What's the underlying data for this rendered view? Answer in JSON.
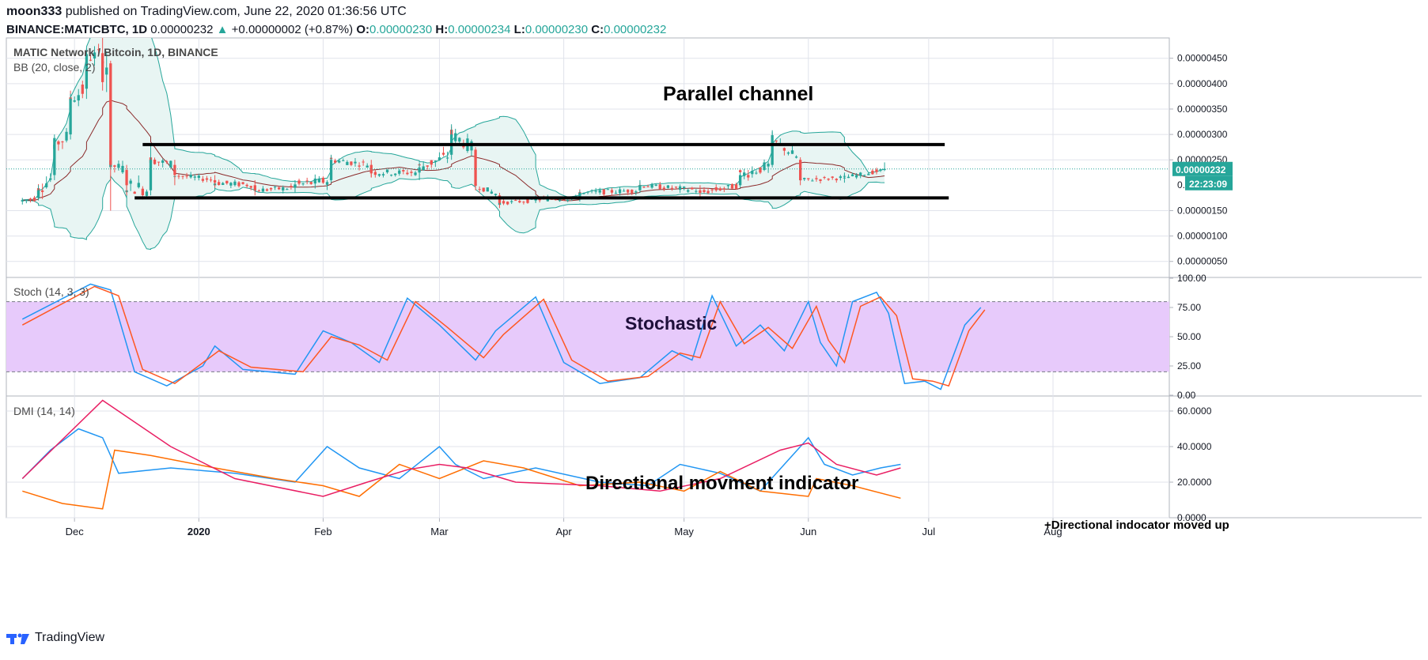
{
  "header": {
    "author": "moon333",
    "published_text": " published on TradingView.com, June 22, 2020 01:36:56 UTC",
    "symbol": "BINANCE:MATICBTC, 1D",
    "last": "0.00000232",
    "change_arrow": "▲",
    "change": "+0.00000002 (+0.87%)",
    "o_label": "O:",
    "o_value": "0.00000230",
    "h_label": "H:",
    "h_value": "0.00000234",
    "l_label": "L:",
    "l_value": "0.00000230",
    "c_label": "C:",
    "c_value": "0.00000232"
  },
  "footer": {
    "brand": "TradingView"
  },
  "colors": {
    "up": "#26a69a",
    "down": "#ef5350",
    "bb_band": "#26a69a",
    "bb_basis": "#8b2b2b",
    "bb_fill": "#e8f5f3",
    "stoch_k": "#2196f3",
    "stoch_d": "#ff5722",
    "stoch_bg": "#e7cafb",
    "dmi_plus": "#2196f3",
    "dmi_minus": "#ff6d00",
    "adx": "#e91e63",
    "grid": "#e0e3eb",
    "last_price": "#26a69a"
  },
  "chart_data": [
    {
      "type": "candlestick",
      "title": "MATIC Network / Bitcoin, 1D, BINANCE",
      "indicator": "BB (20, close, 2)",
      "annotation": "Parallel channel",
      "x_labels": [
        "Dec",
        "2020",
        "Feb",
        "Mar",
        "Apr",
        "May",
        "Jun",
        "Jul",
        "Aug"
      ],
      "y_ticks": [
        "0.00000450",
        "0.00000400",
        "0.00000350",
        "0.00000300",
        "0.00000250",
        "0.00000150",
        "0.00000100",
        "0.00000050"
      ],
      "y_ticks_values": [
        4.5e-06,
        4e-06,
        3.5e-06,
        3e-06,
        2.5e-06,
        1.5e-06,
        1e-06,
        5e-07
      ],
      "ylim": [
        2e-07,
        4.9e-06
      ],
      "last_price_label": "0.00000232",
      "countdown_label": "22:23:09",
      "partial_tick_label": "0.",
      "channel_upper": [
        [
          "2019-12-18",
          2.8e-06
        ],
        [
          "2020-07-05",
          2.8e-06
        ]
      ],
      "channel_lower": [
        [
          "2019-12-16",
          1.75e-06
        ],
        [
          "2020-07-06",
          1.75e-06
        ]
      ],
      "ohlc": [
        [
          "2019-11-18",
          1.68e-06,
          1.75e-06,
          1.62e-06,
          1.7e-06
        ],
        [
          "2019-11-22",
          1.75e-06,
          2e-06,
          1.7e-06,
          1.9e-06
        ],
        [
          "2019-11-26",
          2.2e-06,
          2.9e-06,
          2.1e-06,
          2.8e-06
        ],
        [
          "2019-11-30",
          3e-06,
          3.8e-06,
          2.9e-06,
          3.7e-06
        ],
        [
          "2019-12-04",
          3.9e-06,
          4.7e-06,
          3.7e-06,
          4.5e-06
        ],
        [
          "2019-12-08",
          4.6e-06,
          5e-06,
          4.2e-06,
          4.4e-06
        ],
        [
          "2019-12-10",
          4.4e-06,
          4.45e-06,
          1.5e-06,
          2.4e-06
        ],
        [
          "2019-12-14",
          2.3e-06,
          2.4e-06,
          1.8e-06,
          2e-06
        ],
        [
          "2019-12-20",
          1.9e-06,
          2.8e-06,
          1.8e-06,
          2.5e-06
        ],
        [
          "2019-12-26",
          2.4e-06,
          2.5e-06,
          2e-06,
          2.2e-06
        ],
        [
          "2020-01-05",
          2.1e-06,
          2.2e-06,
          1.95e-06,
          2.05e-06
        ],
        [
          "2020-01-15",
          2e-06,
          2.1e-06,
          1.8e-06,
          1.9e-06
        ],
        [
          "2020-01-25",
          1.95e-06,
          2.1e-06,
          1.85e-06,
          2e-06
        ],
        [
          "2020-02-03",
          2.1e-06,
          2.6e-06,
          2.05e-06,
          2.5e-06
        ],
        [
          "2020-02-13",
          2.4e-06,
          2.5e-06,
          2.15e-06,
          2.25e-06
        ],
        [
          "2020-02-25",
          2.25e-06,
          2.45e-06,
          2.1e-06,
          2.35e-06
        ],
        [
          "2020-03-04",
          2.6e-06,
          3.2e-06,
          2.5e-06,
          3e-06
        ],
        [
          "2020-03-10",
          2.7e-06,
          2.75e-06,
          1.9e-06,
          2e-06
        ],
        [
          "2020-03-16",
          1.8e-06,
          1.85e-06,
          1.55e-06,
          1.65e-06
        ],
        [
          "2020-03-25",
          1.7e-06,
          1.8e-06,
          1.65e-06,
          1.72e-06
        ],
        [
          "2020-04-05",
          1.75e-06,
          1.9e-06,
          1.68e-06,
          1.85e-06
        ],
        [
          "2020-04-20",
          1.9e-06,
          2.1e-06,
          1.85e-06,
          2e-06
        ],
        [
          "2020-05-05",
          1.9e-06,
          2e-06,
          1.75e-06,
          1.85e-06
        ],
        [
          "2020-05-15",
          2e-06,
          2.25e-06,
          1.95e-06,
          2.2e-06
        ],
        [
          "2020-05-23",
          2.4e-06,
          3.05e-06,
          2.35e-06,
          2.9e-06
        ],
        [
          "2020-05-30",
          2.5e-06,
          2.55e-06,
          2e-06,
          2.1e-06
        ],
        [
          "2020-06-10",
          2.15e-06,
          2.25e-06,
          2.05e-06,
          2.15e-06
        ],
        [
          "2020-06-20",
          2.3e-06,
          2.45e-06,
          2.28e-06,
          2.32e-06
        ]
      ]
    },
    {
      "type": "line",
      "indicator": "Stoch (14, 3, 3)",
      "annotation": "Stochastic",
      "y_ticks": [
        "100.00",
        "75.00",
        "50.00",
        "25.00",
        "0.00"
      ],
      "y_ticks_values": [
        100,
        75,
        50,
        25,
        0
      ],
      "ylim": [
        0,
        100
      ],
      "bands": [
        20,
        80
      ],
      "series": [
        {
          "key": "k",
          "values": [
            [
              "2019-11-18",
              65
            ],
            [
              "2019-12-05",
              95
            ],
            [
              "2019-12-10",
              90
            ],
            [
              "2019-12-16",
              20
            ],
            [
              "2019-12-24",
              8
            ],
            [
              "2020-01-02",
              25
            ],
            [
              "2020-01-05",
              42
            ],
            [
              "2020-01-12",
              22
            ],
            [
              "2020-01-25",
              18
            ],
            [
              "2020-02-01",
              55
            ],
            [
              "2020-02-08",
              45
            ],
            [
              "2020-02-15",
              28
            ],
            [
              "2020-02-22",
              83
            ],
            [
              "2020-03-01",
              60
            ],
            [
              "2020-03-10",
              30
            ],
            [
              "2020-03-15",
              55
            ],
            [
              "2020-03-25",
              84
            ],
            [
              "2020-04-01",
              28
            ],
            [
              "2020-04-10",
              10
            ],
            [
              "2020-04-20",
              15
            ],
            [
              "2020-04-28",
              38
            ],
            [
              "2020-05-03",
              30
            ],
            [
              "2020-05-08",
              85
            ],
            [
              "2020-05-14",
              42
            ],
            [
              "2020-05-20",
              60
            ],
            [
              "2020-05-26",
              38
            ],
            [
              "2020-06-01",
              80
            ],
            [
              "2020-06-04",
              45
            ],
            [
              "2020-06-08",
              25
            ],
            [
              "2020-06-12",
              80
            ],
            [
              "2020-06-18",
              88
            ],
            [
              "2020-06-21",
              70
            ],
            [
              "2020-06-25",
              10
            ],
            [
              "2020-06-30",
              12
            ],
            [
              "2020-07-04",
              5
            ],
            [
              "2020-07-10",
              60
            ],
            [
              "2020-07-14",
              75
            ]
          ]
        },
        {
          "key": "d",
          "values": [
            [
              "2019-11-18",
              60
            ],
            [
              "2019-12-06",
              93
            ],
            [
              "2019-12-12",
              85
            ],
            [
              "2019-12-18",
              22
            ],
            [
              "2019-12-26",
              10
            ],
            [
              "2020-01-06",
              38
            ],
            [
              "2020-01-14",
              24
            ],
            [
              "2020-01-27",
              20
            ],
            [
              "2020-02-03",
              50
            ],
            [
              "2020-02-10",
              43
            ],
            [
              "2020-02-17",
              30
            ],
            [
              "2020-02-24",
              80
            ],
            [
              "2020-03-03",
              58
            ],
            [
              "2020-03-12",
              32
            ],
            [
              "2020-03-17",
              52
            ],
            [
              "2020-03-27",
              82
            ],
            [
              "2020-04-03",
              30
            ],
            [
              "2020-04-12",
              12
            ],
            [
              "2020-04-22",
              16
            ],
            [
              "2020-04-30",
              36
            ],
            [
              "2020-05-05",
              32
            ],
            [
              "2020-05-10",
              80
            ],
            [
              "2020-05-16",
              44
            ],
            [
              "2020-05-22",
              58
            ],
            [
              "2020-05-28",
              40
            ],
            [
              "2020-06-03",
              76
            ],
            [
              "2020-06-06",
              47
            ],
            [
              "2020-06-10",
              28
            ],
            [
              "2020-06-14",
              76
            ],
            [
              "2020-06-19",
              84
            ],
            [
              "2020-06-23",
              68
            ],
            [
              "2020-06-27",
              14
            ],
            [
              "2020-07-02",
              12
            ],
            [
              "2020-07-06",
              8
            ],
            [
              "2020-07-11",
              55
            ],
            [
              "2020-07-15",
              73
            ]
          ]
        }
      ]
    },
    {
      "type": "line",
      "indicator": "DMI (14, 14)",
      "annotation": "Directional movment indicator",
      "note": "+Directional indocator moved up",
      "y_ticks": [
        "60.0000",
        "40.0000",
        "20.0000",
        "0.0000"
      ],
      "y_ticks_values": [
        60,
        40,
        20,
        0
      ],
      "ylim": [
        0,
        68
      ],
      "series": [
        {
          "key": "plus",
          "values": [
            [
              "2019-11-18",
              22
            ],
            [
              "2019-11-25",
              38
            ],
            [
              "2019-12-02",
              50
            ],
            [
              "2019-12-08",
              45
            ],
            [
              "2019-12-12",
              25
            ],
            [
              "2019-12-25",
              28
            ],
            [
              "2020-01-10",
              25
            ],
            [
              "2020-01-25",
              20
            ],
            [
              "2020-02-02",
              40
            ],
            [
              "2020-02-10",
              28
            ],
            [
              "2020-02-20",
              22
            ],
            [
              "2020-03-01",
              40
            ],
            [
              "2020-03-05",
              30
            ],
            [
              "2020-03-12",
              22
            ],
            [
              "2020-03-25",
              28
            ],
            [
              "2020-04-10",
              20
            ],
            [
              "2020-04-22",
              18
            ],
            [
              "2020-04-30",
              30
            ],
            [
              "2020-05-10",
              25
            ],
            [
              "2020-05-20",
              15
            ],
            [
              "2020-05-26",
              30
            ],
            [
              "2020-06-01",
              45
            ],
            [
              "2020-06-05",
              30
            ],
            [
              "2020-06-12",
              24
            ],
            [
              "2020-06-19",
              28
            ],
            [
              "2020-06-24",
              30
            ]
          ]
        },
        {
          "key": "minus",
          "values": [
            [
              "2019-11-18",
              15
            ],
            [
              "2019-11-28",
              8
            ],
            [
              "2019-12-08",
              5
            ],
            [
              "2019-12-11",
              38
            ],
            [
              "2019-12-20",
              35
            ],
            [
              "2020-01-05",
              28
            ],
            [
              "2020-01-20",
              22
            ],
            [
              "2020-02-01",
              18
            ],
            [
              "2020-02-10",
              12
            ],
            [
              "2020-02-20",
              30
            ],
            [
              "2020-03-01",
              22
            ],
            [
              "2020-03-12",
              32
            ],
            [
              "2020-03-22",
              28
            ],
            [
              "2020-04-05",
              18
            ],
            [
              "2020-04-20",
              20
            ],
            [
              "2020-05-01",
              15
            ],
            [
              "2020-05-10",
              26
            ],
            [
              "2020-05-20",
              15
            ],
            [
              "2020-06-01",
              12
            ],
            [
              "2020-06-03",
              22
            ],
            [
              "2020-06-12",
              18
            ],
            [
              "2020-06-24",
              11
            ]
          ]
        },
        {
          "key": "adx",
          "values": [
            [
              "2019-11-18",
              22
            ],
            [
              "2019-12-08",
              66
            ],
            [
              "2019-12-25",
              40
            ],
            [
              "2020-01-10",
              22
            ],
            [
              "2020-02-01",
              12
            ],
            [
              "2020-02-12",
              20
            ],
            [
              "2020-02-22",
              27
            ],
            [
              "2020-03-01",
              30
            ],
            [
              "2020-03-08",
              28
            ],
            [
              "2020-03-20",
              20
            ],
            [
              "2020-04-10",
              18
            ],
            [
              "2020-04-25",
              15
            ],
            [
              "2020-05-10",
              22
            ],
            [
              "2020-05-25",
              38
            ],
            [
              "2020-06-01",
              42
            ],
            [
              "2020-06-08",
              30
            ],
            [
              "2020-06-18",
              24
            ],
            [
              "2020-06-24",
              28
            ]
          ]
        }
      ]
    }
  ]
}
